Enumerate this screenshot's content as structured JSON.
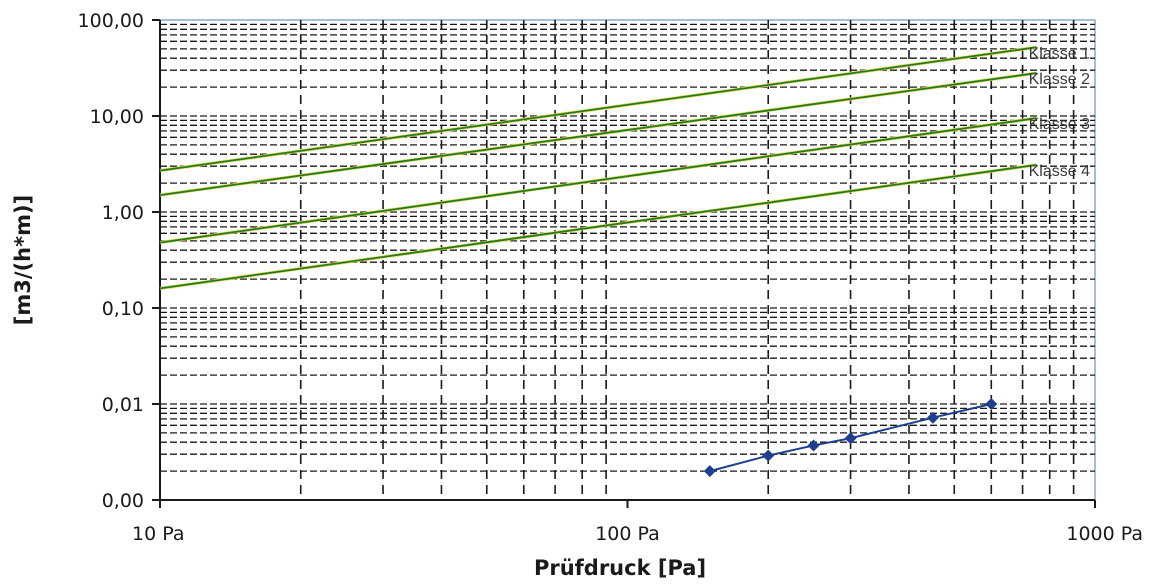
{
  "chart_data": {
    "type": "line",
    "x_scale": "log",
    "y_scale": "log",
    "xlabel": "Prüfdruck [Pa]",
    "ylabel": "[m3/(h*m)]",
    "x_ticks": [
      {
        "value": 10,
        "label": "10 Pa"
      },
      {
        "value": 100,
        "label": "100 Pa"
      },
      {
        "value": 1000,
        "label": "1000 Pa"
      }
    ],
    "y_ticks": [
      {
        "value": 0.001,
        "label": "0,00"
      },
      {
        "value": 0.01,
        "label": "0,01"
      },
      {
        "value": 0.1,
        "label": "0,10"
      },
      {
        "value": 1,
        "label": "1,00"
      },
      {
        "value": 10,
        "label": "10,00"
      },
      {
        "value": 100,
        "label": "100,00"
      }
    ],
    "xlim": [
      10,
      1000
    ],
    "ylim": [
      0.001,
      100
    ],
    "grid": true,
    "class_lines": [
      {
        "name": "Klasse 1",
        "x": [
          10,
          750
        ],
        "y": [
          2.7,
          52
        ]
      },
      {
        "name": "Klasse 2",
        "x": [
          10,
          750
        ],
        "y": [
          1.5,
          28
        ]
      },
      {
        "name": "Klasse 3",
        "x": [
          10,
          750
        ],
        "y": [
          0.48,
          9.5
        ]
      },
      {
        "name": "Klasse 4",
        "x": [
          10,
          750
        ],
        "y": [
          0.16,
          3.1
        ]
      }
    ],
    "measured_series": {
      "x": [
        150,
        200,
        250,
        300,
        450,
        600
      ],
      "y": [
        0.002,
        0.0029,
        0.0037,
        0.0044,
        0.0072,
        0.01
      ]
    },
    "colors": {
      "class_line": "#1f7a2a",
      "measured": "#1f3f8f",
      "grid": "#1a1a1a",
      "plot_border": "#8aa6c8"
    }
  }
}
